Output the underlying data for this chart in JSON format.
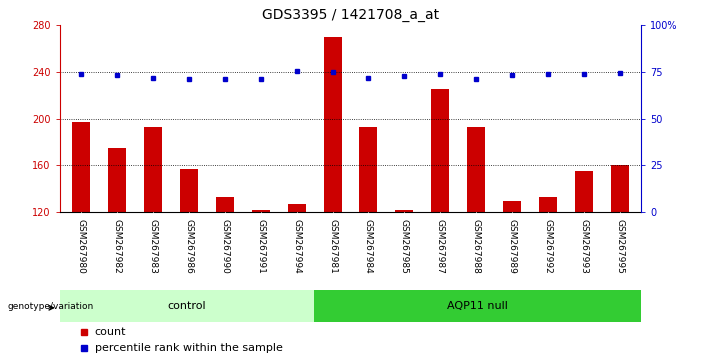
{
  "title": "GDS3395 / 1421708_a_at",
  "samples": [
    "GSM267980",
    "GSM267982",
    "GSM267983",
    "GSM267986",
    "GSM267990",
    "GSM267991",
    "GSM267994",
    "GSM267981",
    "GSM267984",
    "GSM267985",
    "GSM267987",
    "GSM267988",
    "GSM267989",
    "GSM267992",
    "GSM267993",
    "GSM267995"
  ],
  "bar_values": [
    197,
    175,
    193,
    157,
    133,
    122,
    127,
    270,
    193,
    122,
    225,
    193,
    130,
    133,
    155,
    160
  ],
  "dot_values": [
    238,
    237,
    235,
    234,
    234,
    234,
    241,
    240,
    235,
    236,
    238,
    234,
    237,
    238,
    238,
    239
  ],
  "groups": [
    {
      "label": "control",
      "start": 0,
      "end": 7,
      "color": "#ccffcc"
    },
    {
      "label": "AQP11 null",
      "start": 7,
      "end": 16,
      "color": "#33cc33"
    }
  ],
  "ylim_left": [
    120,
    280
  ],
  "ylim_right": [
    0,
    100
  ],
  "yticks_left": [
    120,
    160,
    200,
    240,
    280
  ],
  "yticks_right": [
    0,
    25,
    50,
    75,
    100
  ],
  "bar_color": "#cc0000",
  "dot_color": "#0000cc",
  "sample_bg_color": "#cccccc",
  "plot_bg": "#ffffff",
  "label_count": "count",
  "label_percentile": "percentile rank within the sample",
  "genotype_label": "genotype/variation",
  "title_fontsize": 10,
  "tick_fontsize": 7,
  "sample_fontsize": 6.5,
  "group_fontsize": 8,
  "legend_fontsize": 8
}
